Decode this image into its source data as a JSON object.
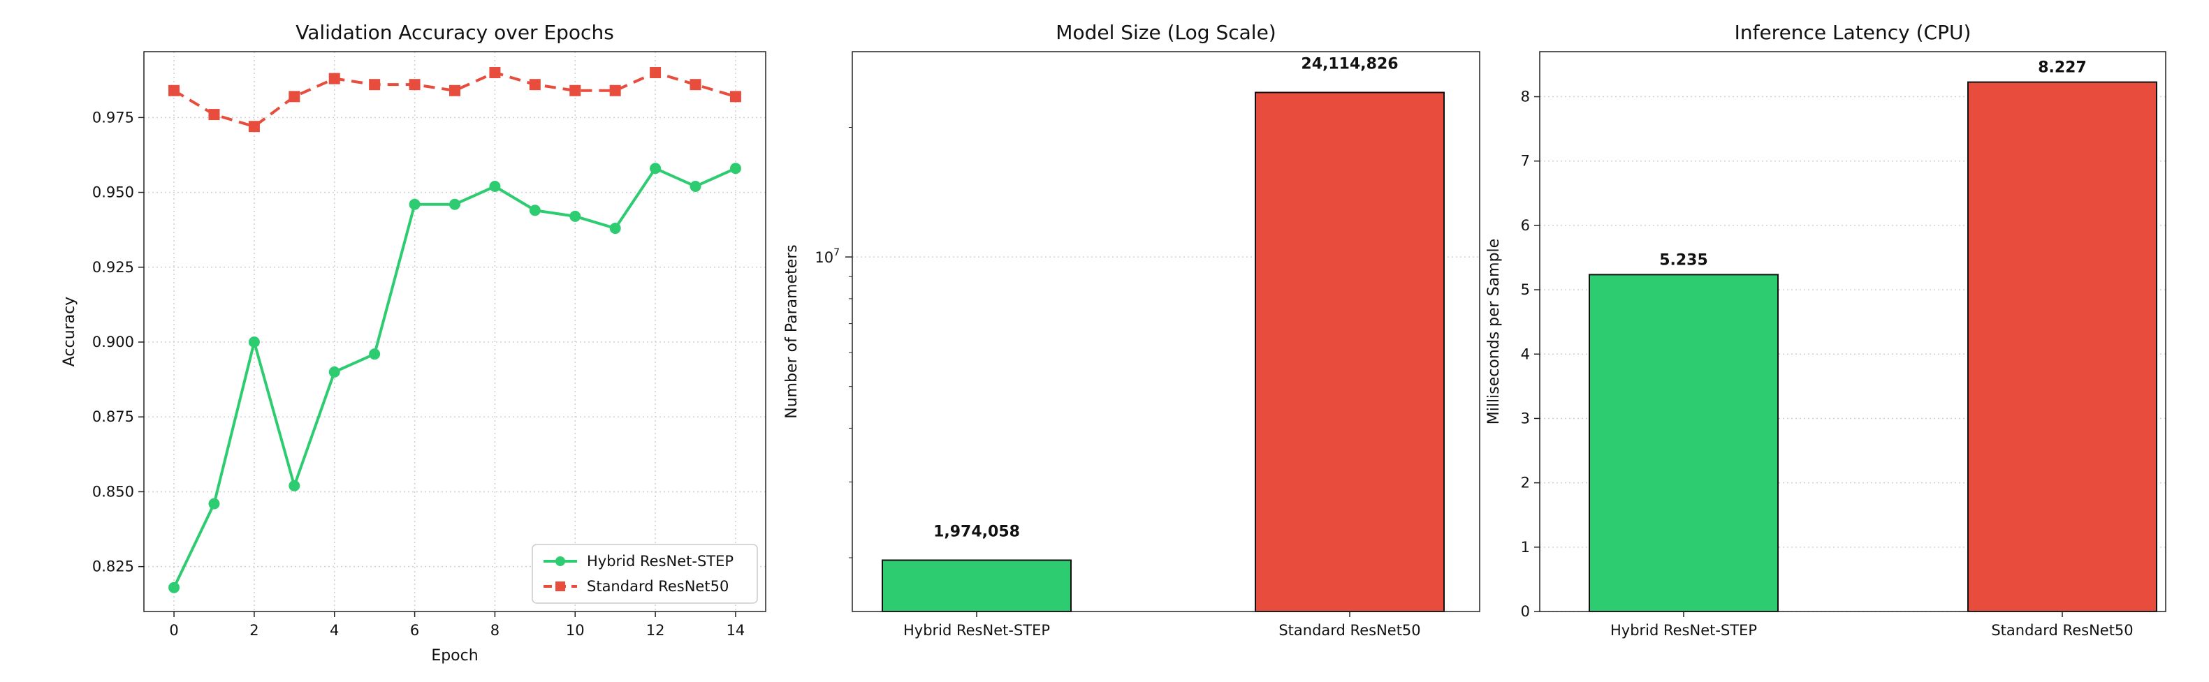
{
  "chart_data": [
    {
      "type": "line",
      "title": "Validation Accuracy over Epochs",
      "xlabel": "Epoch",
      "ylabel": "Accuracy",
      "x": [
        0,
        1,
        2,
        3,
        4,
        5,
        6,
        7,
        8,
        9,
        10,
        11,
        12,
        13,
        14
      ],
      "xticks": [
        0,
        2,
        4,
        6,
        8,
        10,
        12,
        14
      ],
      "yticks": [
        0.825,
        0.85,
        0.875,
        0.9,
        0.925,
        0.95,
        0.975
      ],
      "ylim": [
        0.81,
        0.997
      ],
      "grid": true,
      "legend_position": "bottom-right",
      "series": [
        {
          "name": "Hybrid ResNet-STEP",
          "color": "#2ecc71",
          "values": [
            0.818,
            0.846,
            0.9,
            0.852,
            0.89,
            0.896,
            0.946,
            0.946,
            0.952,
            0.944,
            0.942,
            0.938,
            0.958,
            0.952,
            0.958
          ]
        },
        {
          "name": "Standard ResNet50",
          "color": "#e74c3c",
          "values": [
            0.984,
            0.976,
            0.972,
            0.982,
            0.988,
            0.986,
            0.986,
            0.984,
            0.99,
            0.986,
            0.984,
            0.984,
            0.99,
            0.986,
            0.982
          ]
        }
      ]
    },
    {
      "type": "bar",
      "title": "Model Size (Log Scale)",
      "ylabel": "Number of Parameters",
      "yscale": "log",
      "ylim": [
        1500000,
        30000000
      ],
      "major_tick_label": "10^7",
      "grid": true,
      "categories": [
        "Hybrid ResNet-STEP",
        "Standard ResNet50"
      ],
      "values": [
        1974058,
        24114826
      ],
      "value_labels": [
        "1,974,058",
        "24,114,826"
      ],
      "colors": [
        "#2ecc71",
        "#e74c3c"
      ]
    },
    {
      "type": "bar",
      "title": "Inference Latency (CPU)",
      "ylabel": "Milliseconds per Sample",
      "ylim": [
        0,
        8.7
      ],
      "yticks": [
        0,
        1,
        2,
        3,
        4,
        5,
        6,
        7,
        8
      ],
      "grid": true,
      "categories": [
        "Hybrid ResNet-STEP",
        "Standard ResNet50"
      ],
      "values": [
        5.235,
        8.227
      ],
      "value_labels": [
        "5.235",
        "8.227"
      ],
      "colors": [
        "#2ecc71",
        "#e74c3c"
      ]
    }
  ]
}
